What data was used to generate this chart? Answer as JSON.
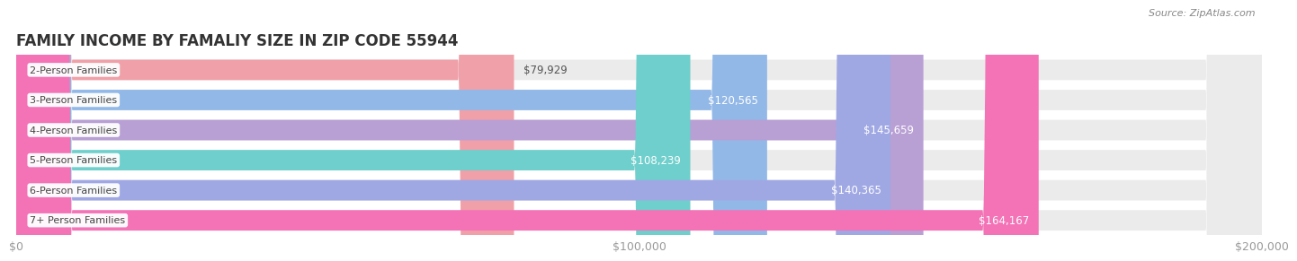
{
  "title": "FAMILY INCOME BY FAMALIY SIZE IN ZIP CODE 55944",
  "source": "Source: ZipAtlas.com",
  "categories": [
    "2-Person Families",
    "3-Person Families",
    "4-Person Families",
    "5-Person Families",
    "6-Person Families",
    "7+ Person Families"
  ],
  "values": [
    79929,
    120565,
    145659,
    108239,
    140365,
    164167
  ],
  "bar_colors": [
    "#f0a0a8",
    "#92b8e8",
    "#b89fd4",
    "#6ecfcc",
    "#a0a8e4",
    "#f472b6"
  ],
  "label_colors": [
    "#666666",
    "#ffffff",
    "#ffffff",
    "#555555",
    "#ffffff",
    "#ffffff"
  ],
  "bg_color": "#ebebeb",
  "background_color": "#ffffff",
  "xlim": [
    0,
    200000
  ],
  "xticks": [
    0,
    100000,
    200000
  ],
  "xticklabels": [
    "$0",
    "$100,000",
    "$200,000"
  ],
  "title_fontsize": 12,
  "tick_fontsize": 9,
  "bar_label_fontsize": 8.5,
  "cat_label_fontsize": 8,
  "value_threshold_inside": 105000
}
